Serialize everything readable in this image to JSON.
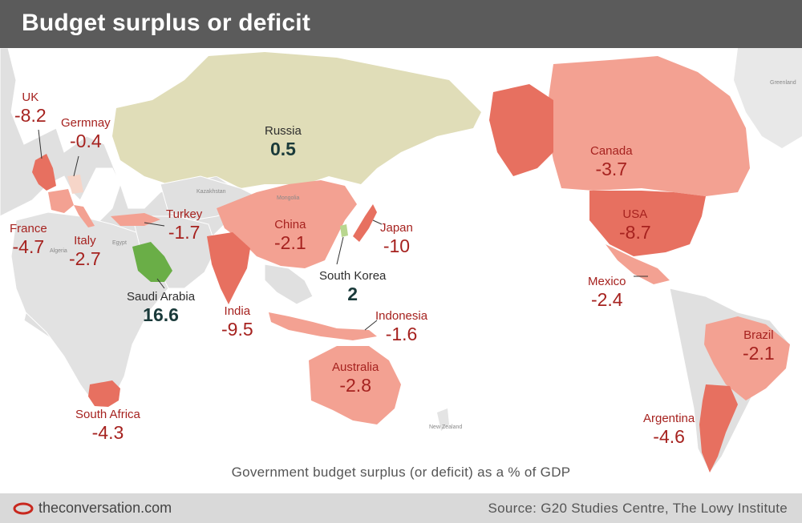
{
  "title": "Budget surplus or deficit",
  "caption": "Government budget surplus (or deficit) as a % of GDP",
  "footer": {
    "brand": "theconversation.com",
    "source": "Source: G20 Studies Centre, The Lowy Institute"
  },
  "colors": {
    "header": "#5b5b5b",
    "negative_text": "#a6221f",
    "positive_text": "#1a3a3a",
    "deficit_strong": "#e77060",
    "deficit_light": "#f3a192",
    "surplus_green": "#6aae47",
    "surplus_light": "#e0ddb8",
    "land": "#e0e0e0",
    "ocean": "#ffffff"
  },
  "legend_unit": "% of GDP",
  "countries": [
    {
      "name": "UK",
      "value": "-8.2"
    },
    {
      "name": "Germnay",
      "value": "-0.4"
    },
    {
      "name": "France",
      "value": "-4.7"
    },
    {
      "name": "Italy",
      "value": "-2.7"
    },
    {
      "name": "Turkey",
      "value": "-1.7"
    },
    {
      "name": "Russia",
      "value": "0.5"
    },
    {
      "name": "China",
      "value": "-2.1"
    },
    {
      "name": "Japan",
      "value": "-10"
    },
    {
      "name": "South Korea",
      "value": "2"
    },
    {
      "name": "Saudi Arabia",
      "value": "16.6"
    },
    {
      "name": "India",
      "value": "-9.5"
    },
    {
      "name": "Indonesia",
      "value": "-1.6"
    },
    {
      "name": "Australia",
      "value": "-2.8"
    },
    {
      "name": "South Africa",
      "value": "-4.3"
    },
    {
      "name": "Canada",
      "value": "-3.7"
    },
    {
      "name": "USA",
      "value": "-8.7"
    },
    {
      "name": "Mexico",
      "value": "-2.4"
    },
    {
      "name": "Brazil",
      "value": "-2.1"
    },
    {
      "name": "Argentina",
      "value": "-4.6"
    }
  ],
  "minor_labels": {
    "greenland": "Greenland",
    "kazakhstan": "Kazakhstan",
    "mongolia": "Mongolia",
    "new_zealand": "New Zealand",
    "algeria": "Algeria",
    "egypt": "Egypt"
  }
}
